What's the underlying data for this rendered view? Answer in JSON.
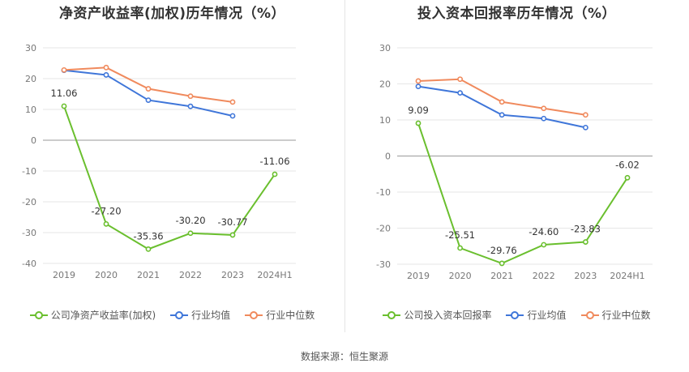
{
  "chart_data": [
    {
      "type": "line",
      "title": "净资产收益率(加权)历年情况（%）",
      "categories": [
        "2019",
        "2020",
        "2021",
        "2022",
        "2023",
        "2024H1"
      ],
      "ylim": [
        -40,
        30
      ],
      "yticks": [
        30,
        20,
        10,
        0,
        -10,
        -20,
        -30,
        -40
      ],
      "grid": true,
      "legend_position": "bottom",
      "series": [
        {
          "name": "公司净资产收益率(加权)",
          "color": "#6abf2e",
          "labels": true,
          "values": [
            11.06,
            -27.2,
            -35.36,
            -30.2,
            -30.77,
            -11.06
          ],
          "value_labels": [
            "11.06",
            "-27.20",
            "-35.36",
            "-30.20",
            "-30.77",
            "-11.06"
          ]
        },
        {
          "name": "行业均值",
          "color": "#3f76d9",
          "labels": false,
          "values": [
            22.7,
            21.2,
            13.0,
            11.0,
            7.9,
            null
          ]
        },
        {
          "name": "行业中位数",
          "color": "#f08a5d",
          "labels": false,
          "values": [
            22.8,
            23.6,
            16.7,
            14.3,
            12.4,
            null
          ]
        }
      ]
    },
    {
      "type": "line",
      "title": "投入资本回报率历年情况（%）",
      "categories": [
        "2019",
        "2020",
        "2021",
        "2022",
        "2023",
        "2024H1"
      ],
      "ylim": [
        -30,
        30
      ],
      "yticks": [
        30,
        20,
        10,
        0,
        -10,
        -20,
        -30
      ],
      "grid": true,
      "legend_position": "bottom",
      "series": [
        {
          "name": "公司投入资本回报率",
          "color": "#6abf2e",
          "labels": true,
          "values": [
            9.09,
            -25.51,
            -29.76,
            -24.6,
            -23.83,
            -6.02
          ],
          "value_labels": [
            "9.09",
            "-25.51",
            "-29.76",
            "-24.60",
            "-23.83",
            "-6.02"
          ]
        },
        {
          "name": "行业均值",
          "color": "#3f76d9",
          "labels": false,
          "values": [
            19.3,
            17.5,
            11.4,
            10.4,
            7.9,
            null
          ]
        },
        {
          "name": "行业中位数",
          "color": "#f08a5d",
          "labels": false,
          "values": [
            20.8,
            21.3,
            15.0,
            13.2,
            11.4,
            null
          ]
        }
      ]
    }
  ],
  "footer": {
    "source": "数据来源：恒生聚源"
  }
}
